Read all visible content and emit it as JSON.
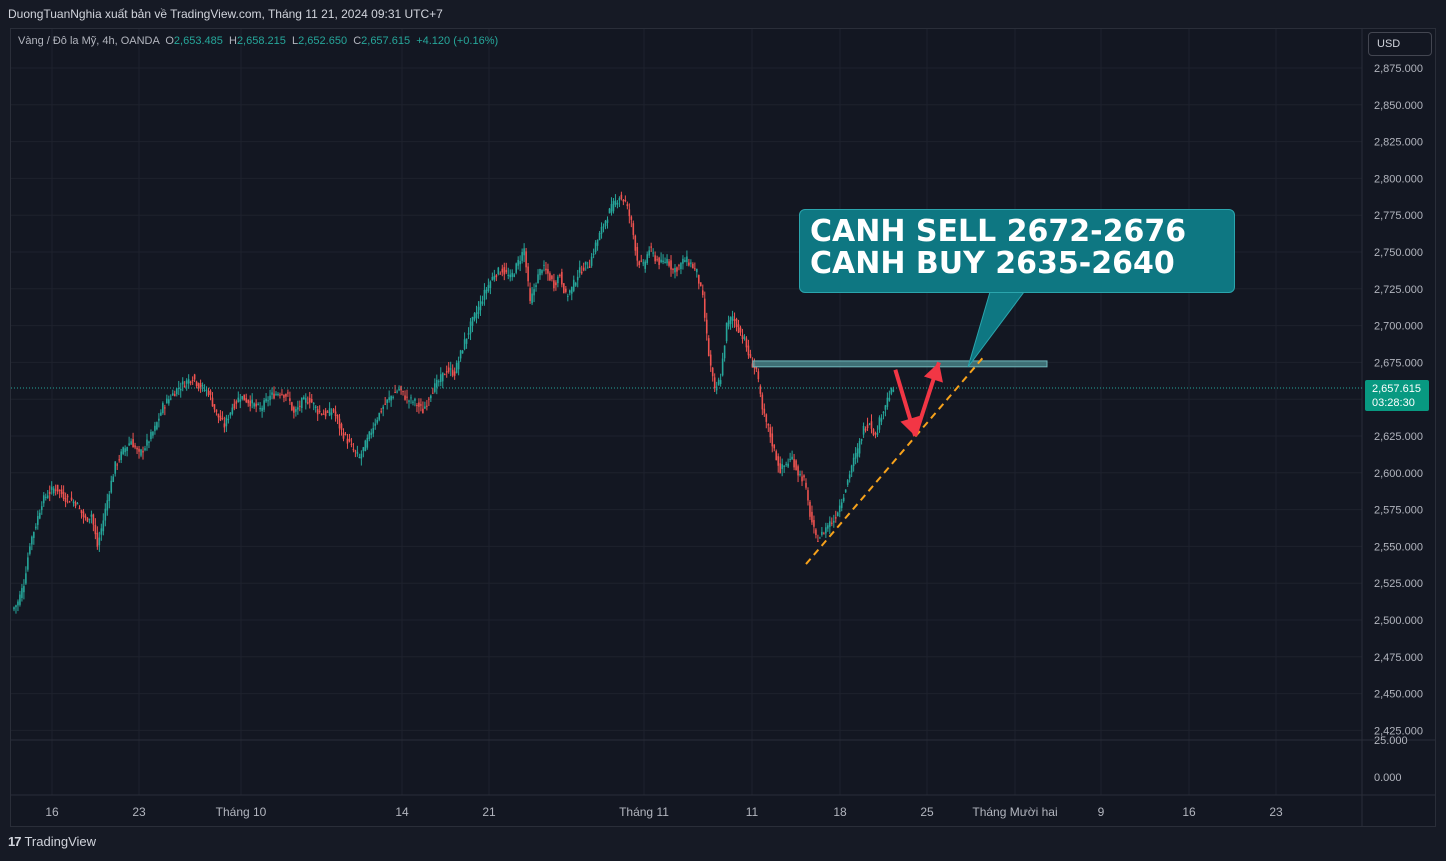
{
  "header": {
    "publisher_line": "DuongTuanNghia xuất bản về TradingView.com, Tháng 11 21, 2024 09:31 UTC+7"
  },
  "legend": {
    "symbol": "Vàng / Đô la Mỹ, 4h, OANDA",
    "open_label": "O",
    "open": "2,653.485",
    "high_label": "H",
    "high": "2,658.215",
    "low_label": "L",
    "low": "2,652.650",
    "close_label": "C",
    "close": "2,657.615",
    "change": "+4.120 (+0.16%)"
  },
  "currency_button": "USD",
  "price_axis": {
    "ticks": [
      "2,875.000",
      "2,850.000",
      "2,825.000",
      "2,800.000",
      "2,775.000",
      "2,750.000",
      "2,725.000",
      "2,700.000",
      "2,675.000",
      "2,650.000",
      "2,625.000",
      "2,600.000",
      "2,575.000",
      "2,550.000",
      "2,525.000",
      "2,500.000",
      "2,475.000",
      "2,450.000",
      "2,425.000"
    ],
    "sub_ticks": [
      "25.000",
      "0.000"
    ],
    "current_price": "2,657.615",
    "countdown": "03:28:30"
  },
  "time_axis": {
    "labels": [
      "16",
      "23",
      "Tháng 10",
      "14",
      "21",
      "Tháng 11",
      "11",
      "18",
      "25",
      "Tháng Mười hai",
      "9",
      "16",
      "23"
    ]
  },
  "callout": {
    "line1": "CANH SELL 2672-2676",
    "line2": "CANH BUY 2635-2640"
  },
  "colors": {
    "up": "#26a69a",
    "down": "#ef5350",
    "background": "#131722",
    "callout_bg": "#0e7782",
    "trendline": "#f7a21b",
    "arrow": "#f23645"
  },
  "footer": {
    "brand": "TradingView"
  },
  "chart_data": {
    "type": "candlestick",
    "ylim": [
      2412,
      2888
    ],
    "path": [
      [
        0,
        2507
      ],
      [
        3,
        2512
      ],
      [
        6,
        2525
      ],
      [
        9,
        2552
      ],
      [
        12,
        2565
      ],
      [
        15,
        2580
      ],
      [
        18,
        2586
      ],
      [
        22,
        2590
      ],
      [
        27,
        2583
      ],
      [
        32,
        2580
      ],
      [
        37,
        2568
      ],
      [
        40,
        2572
      ],
      [
        43,
        2550
      ],
      [
        46,
        2568
      ],
      [
        49,
        2588
      ],
      [
        52,
        2605
      ],
      [
        56,
        2615
      ],
      [
        60,
        2622
      ],
      [
        64,
        2612
      ],
      [
        68,
        2620
      ],
      [
        72,
        2630
      ],
      [
        76,
        2645
      ],
      [
        80,
        2652
      ],
      [
        84,
        2658
      ],
      [
        88,
        2662
      ],
      [
        91,
        2665
      ],
      [
        95,
        2658
      ],
      [
        99,
        2655
      ],
      [
        103,
        2640
      ],
      [
        107,
        2632
      ],
      [
        111,
        2645
      ],
      [
        115,
        2652
      ],
      [
        120,
        2648
      ],
      [
        125,
        2643
      ],
      [
        130,
        2652
      ],
      [
        135,
        2655
      ],
      [
        139,
        2652
      ],
      [
        142,
        2640
      ],
      [
        146,
        2648
      ],
      [
        150,
        2650
      ],
      [
        154,
        2642
      ],
      [
        158,
        2640
      ],
      [
        162,
        2642
      ],
      [
        166,
        2628
      ],
      [
        169,
        2622
      ],
      [
        172,
        2615
      ],
      [
        175,
        2610
      ],
      [
        179,
        2622
      ],
      [
        183,
        2635
      ],
      [
        187,
        2645
      ],
      [
        191,
        2652
      ],
      [
        195,
        2657
      ],
      [
        199,
        2650
      ],
      [
        203,
        2648
      ],
      [
        207,
        2642
      ],
      [
        211,
        2655
      ],
      [
        215,
        2662
      ],
      [
        219,
        2670
      ],
      [
        223,
        2668
      ],
      [
        227,
        2685
      ],
      [
        231,
        2700
      ],
      [
        235,
        2712
      ],
      [
        239,
        2725
      ],
      [
        243,
        2735
      ],
      [
        247,
        2738
      ],
      [
        251,
        2732
      ],
      [
        254,
        2740
      ],
      [
        258,
        2752
      ],
      [
        261,
        2715
      ],
      [
        264,
        2730
      ],
      [
        267,
        2740
      ],
      [
        270,
        2735
      ],
      [
        273,
        2728
      ],
      [
        276,
        2735
      ],
      [
        279,
        2720
      ],
      [
        282,
        2725
      ],
      [
        285,
        2735
      ],
      [
        288,
        2740
      ],
      [
        291,
        2742
      ],
      [
        294,
        2755
      ],
      [
        297,
        2765
      ],
      [
        300,
        2775
      ],
      [
        303,
        2782
      ],
      [
        306,
        2788
      ],
      [
        309,
        2784
      ],
      [
        312,
        2770
      ],
      [
        315,
        2745
      ],
      [
        318,
        2740
      ],
      [
        321,
        2752
      ],
      [
        324,
        2746
      ],
      [
        327,
        2742
      ],
      [
        330,
        2745
      ],
      [
        333,
        2738
      ],
      [
        336,
        2740
      ],
      [
        339,
        2745
      ],
      [
        342,
        2742
      ],
      [
        345,
        2736
      ],
      [
        348,
        2718
      ],
      [
        351,
        2680
      ],
      [
        354,
        2655
      ],
      [
        357,
        2665
      ],
      [
        360,
        2700
      ],
      [
        363,
        2706
      ],
      [
        366,
        2698
      ],
      [
        369,
        2690
      ],
      [
        372,
        2676
      ],
      [
        375,
        2670
      ],
      [
        378,
        2642
      ],
      [
        381,
        2630
      ],
      [
        384,
        2615
      ],
      [
        387,
        2602
      ],
      [
        390,
        2606
      ],
      [
        393,
        2610
      ],
      [
        396,
        2600
      ],
      [
        399,
        2595
      ],
      [
        402,
        2572
      ],
      [
        405,
        2555
      ],
      [
        408,
        2558
      ],
      [
        411,
        2565
      ],
      [
        414,
        2568
      ],
      [
        417,
        2578
      ],
      [
        420,
        2590
      ],
      [
        423,
        2605
      ],
      [
        426,
        2615
      ],
      [
        429,
        2630
      ],
      [
        432,
        2635
      ],
      [
        435,
        2625
      ],
      [
        438,
        2640
      ],
      [
        441,
        2650
      ],
      [
        444,
        2657
      ]
    ],
    "horizontal_zone": [
      2672,
      2676
    ],
    "trendline_from": [
      400,
      2538
    ],
    "trendline_to": [
      489,
      2678
    ],
    "arrow_down_from": [
      445,
      2670
    ],
    "arrow_down_to": [
      455,
      2625
    ],
    "arrow_up_from": [
      455,
      2625
    ],
    "arrow_up_to": [
      467,
      2675
    ]
  }
}
